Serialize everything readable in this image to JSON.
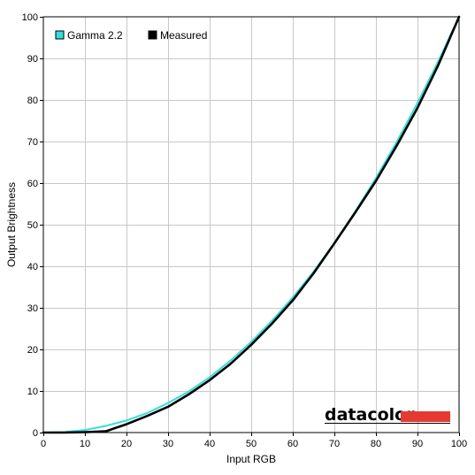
{
  "chart_data": {
    "type": "line",
    "title": "",
    "xlabel": "Input RGB",
    "ylabel": "Output Brightness",
    "xlim": [
      0,
      100
    ],
    "ylim": [
      0,
      100
    ],
    "x_ticks": [
      0,
      10,
      20,
      30,
      40,
      50,
      60,
      70,
      80,
      90,
      100
    ],
    "y_ticks": [
      0,
      10,
      20,
      30,
      40,
      50,
      60,
      70,
      80,
      90,
      100
    ],
    "grid": true,
    "legend_position": "top-left",
    "legend": [
      "Gamma 2.2",
      "Measured"
    ],
    "x": [
      0,
      5,
      10,
      15,
      20,
      25,
      30,
      35,
      40,
      45,
      50,
      55,
      60,
      65,
      70,
      75,
      80,
      85,
      90,
      95,
      100
    ],
    "series": [
      {
        "name": "Gamma 2.2",
        "color": "#33dddd",
        "values": [
          0,
          0.1,
          0.6,
          1.6,
          2.9,
          4.7,
          7.1,
          9.9,
          13.3,
          17.3,
          21.8,
          26.9,
          32.5,
          38.7,
          45.6,
          53.1,
          61.2,
          69.9,
          79.3,
          89.3,
          100
        ]
      },
      {
        "name": "Measured",
        "color": "#000000",
        "values": [
          0,
          0,
          0.1,
          0.3,
          2.0,
          4.0,
          6.2,
          9.2,
          12.6,
          16.5,
          21.1,
          26.2,
          31.8,
          38.3,
          45.5,
          52.9,
          60.5,
          69.0,
          78.1,
          88.4,
          100
        ]
      }
    ]
  },
  "watermark": {
    "text": "datacolor",
    "bar_color": "#e33b32"
  }
}
